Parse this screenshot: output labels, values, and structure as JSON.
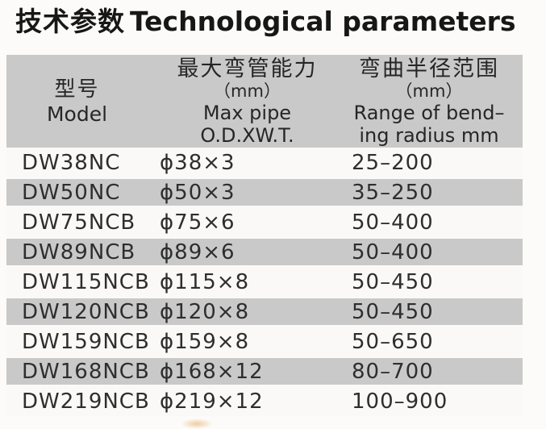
{
  "title": {
    "zh": "技术参数",
    "en": "Technological parameters"
  },
  "colors": {
    "header_bg": "#c9c9c9",
    "row_alt_bg": "#c9c9c9",
    "row_bg": "#faf9f7",
    "page_bg": "#fcfbf9",
    "title_text": "#171717",
    "body_text": "#2e2e2e"
  },
  "table": {
    "columns": {
      "model": {
        "zh": "型号",
        "en": "Model"
      },
      "max_pipe": {
        "zh": "最大弯管能力",
        "unit": "（mm）",
        "en_line1": "Max pipe",
        "en_line2": "O.D.XW.T."
      },
      "bending_radius": {
        "zh": "弯曲半径范围",
        "unit": "（mm）",
        "en_line1": "Range of bend–",
        "en_line2": "ing radius mm"
      }
    },
    "rows": [
      {
        "model": "DW38NC",
        "max_pipe": "ϕ38×3",
        "bending_radius": "25–200"
      },
      {
        "model": "DW50NC",
        "max_pipe": "ϕ50×3",
        "bending_radius": "35–250"
      },
      {
        "model": "DW75NCB",
        "max_pipe": "ϕ75×6",
        "bending_radius": "50–400"
      },
      {
        "model": "DW89NCB",
        "max_pipe": "ϕ89×6",
        "bending_radius": "50–400"
      },
      {
        "model": "DW115NCB",
        "max_pipe": "ϕ115×8",
        "bending_radius": "50–450"
      },
      {
        "model": "DW120NCB",
        "max_pipe": "ϕ120×8",
        "bending_radius": "50–450"
      },
      {
        "model": "DW159NCB",
        "max_pipe": "ϕ159×8",
        "bending_radius": "50–650"
      },
      {
        "model": "DW168NCB",
        "max_pipe": "ϕ168×12",
        "bending_radius": "80–700"
      },
      {
        "model": "DW219NCB",
        "max_pipe": "ϕ219×12",
        "bending_radius": "100–900"
      }
    ]
  }
}
